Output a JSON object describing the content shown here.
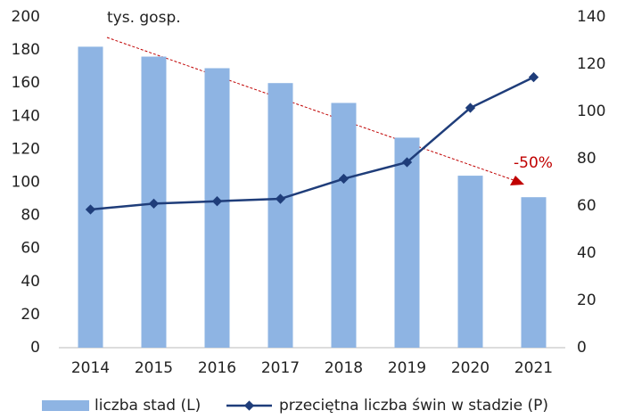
{
  "chart_data": {
    "type": "bar",
    "annotations": [
      "tys. gosp.",
      "-50%"
    ],
    "categories": [
      "2014",
      "2015",
      "2016",
      "2017",
      "2018",
      "2019",
      "2020",
      "2021"
    ],
    "series": [
      {
        "name": "liczba stad (L)",
        "type": "bar",
        "color": "#8eb4e3",
        "values": [
          182,
          176,
          169,
          160,
          148,
          127,
          104,
          91
        ]
      },
      {
        "name": "przeciętna liczba świn w stadzie (P)",
        "type": "line",
        "axis": "y2",
        "color": "#1f3d7a",
        "values": [
          58.5,
          61,
          62,
          63,
          71.5,
          78.5,
          101.5,
          114.5
        ]
      }
    ],
    "ylim": [
      0,
      200
    ],
    "yticks": [
      0,
      20,
      40,
      60,
      80,
      100,
      120,
      140,
      160,
      180,
      200
    ],
    "y2lim": [
      0,
      140
    ],
    "y2ticks": [
      0,
      20,
      40,
      60,
      80,
      100,
      120,
      140
    ],
    "annotation_color": "#c00000"
  }
}
